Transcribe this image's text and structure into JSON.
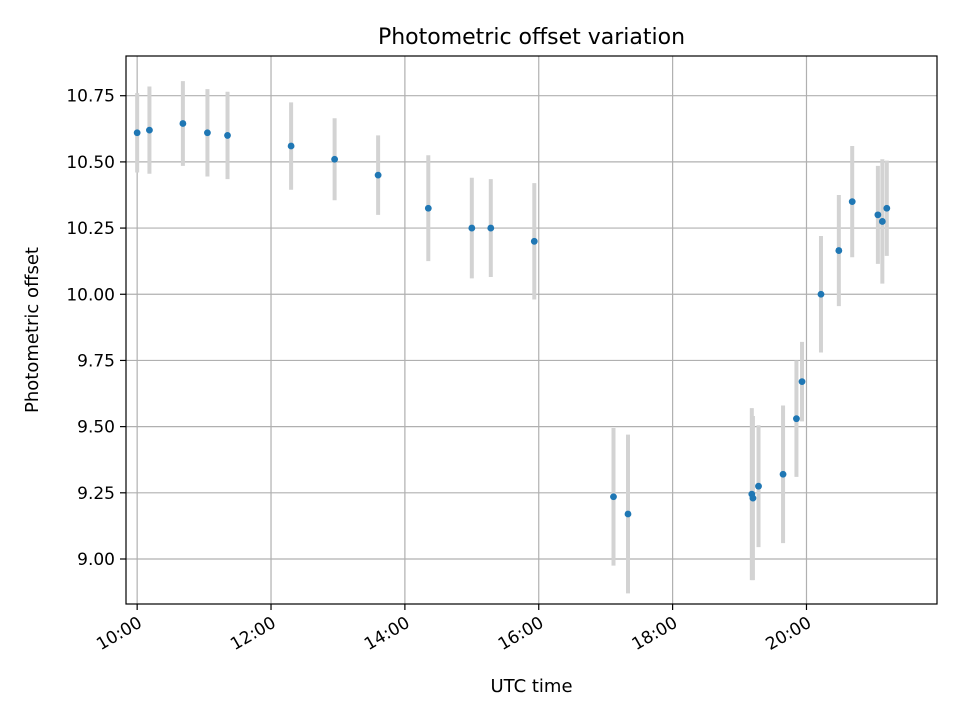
{
  "chart_data": {
    "type": "scatter",
    "title": "Photometric offset variation",
    "xlabel": "UTC time",
    "ylabel": "Photometric offset",
    "x_ticks": [
      "10:00",
      "12:00",
      "14:00",
      "16:00",
      "18:00",
      "20:00"
    ],
    "y_ticks": [
      "9.00",
      "9.25",
      "9.50",
      "9.75",
      "10.00",
      "10.25",
      "10.50",
      "10.75"
    ],
    "xlim": [
      "09:50",
      "21:57"
    ],
    "ylim": [
      8.83,
      10.9
    ],
    "grid": true,
    "series": [
      {
        "marker_color": "#1f77b4",
        "errorbar_color": "#d3d3d3",
        "points": [
          {
            "x": "10:00",
            "y": 10.61,
            "err": 0.15
          },
          {
            "x": "10:11",
            "y": 10.62,
            "err": 0.165
          },
          {
            "x": "10:41",
            "y": 10.645,
            "err": 0.16
          },
          {
            "x": "11:03",
            "y": 10.61,
            "err": 0.165
          },
          {
            "x": "11:21",
            "y": 10.6,
            "err": 0.165
          },
          {
            "x": "12:18",
            "y": 10.56,
            "err": 0.165
          },
          {
            "x": "12:57",
            "y": 10.51,
            "err": 0.155
          },
          {
            "x": "13:36",
            "y": 10.45,
            "err": 0.15
          },
          {
            "x": "14:21",
            "y": 10.325,
            "err": 0.2
          },
          {
            "x": "15:00",
            "y": 10.25,
            "err": 0.19
          },
          {
            "x": "15:17",
            "y": 10.25,
            "err": 0.185
          },
          {
            "x": "15:56",
            "y": 10.2,
            "err": 0.22
          },
          {
            "x": "17:07",
            "y": 9.235,
            "err": 0.26
          },
          {
            "x": "17:20",
            "y": 9.17,
            "err": 0.3
          },
          {
            "x": "19:11",
            "y": 9.245,
            "err": 0.325
          },
          {
            "x": "19:12",
            "y": 9.23,
            "err": 0.31
          },
          {
            "x": "19:17",
            "y": 9.275,
            "err": 0.23
          },
          {
            "x": "19:39",
            "y": 9.32,
            "err": 0.26
          },
          {
            "x": "19:51",
            "y": 9.53,
            "err": 0.22
          },
          {
            "x": "19:56",
            "y": 9.67,
            "err": 0.15
          },
          {
            "x": "20:13",
            "y": 10.0,
            "err": 0.22
          },
          {
            "x": "20:29",
            "y": 10.165,
            "err": 0.21
          },
          {
            "x": "20:41",
            "y": 10.35,
            "err": 0.21
          },
          {
            "x": "21:04",
            "y": 10.3,
            "err": 0.185
          },
          {
            "x": "21:08",
            "y": 10.275,
            "err": 0.235
          },
          {
            "x": "21:12",
            "y": 10.325,
            "err": 0.18
          }
        ]
      }
    ]
  }
}
